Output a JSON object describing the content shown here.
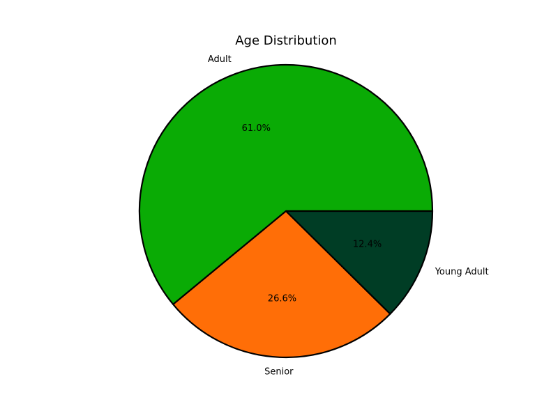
{
  "chart_data": {
    "type": "pie",
    "title": "Age Distribution",
    "slices": [
      {
        "label": "Adult",
        "value": 61.0,
        "pct_label": "61.0%",
        "color": "#0aab05"
      },
      {
        "label": "Senior",
        "value": 26.6,
        "pct_label": "26.6%",
        "color": "#ff6e07"
      },
      {
        "label": "Young Adult",
        "value": 12.4,
        "pct_label": "12.4%",
        "color": "#003d25"
      }
    ],
    "start_angle_deg": 0,
    "direction": "counterclockwise",
    "edge_color": "#000000"
  }
}
